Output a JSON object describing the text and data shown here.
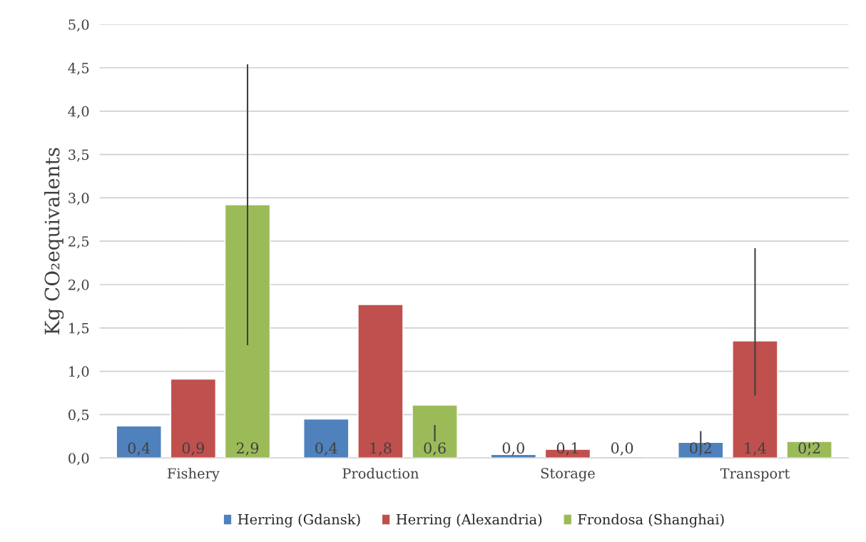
{
  "chart_data": {
    "type": "bar",
    "ylabel": "Kg CO₂equivalents",
    "categories": [
      "Fishery",
      "Production",
      "Storage",
      "Transport"
    ],
    "series": [
      {
        "name": "Herring (Gdansk)",
        "color": "#4f81bd",
        "values": [
          0.37,
          0.45,
          0.04,
          0.18
        ],
        "value_labels": [
          "0,4",
          "0,4",
          "0,0",
          "0,2"
        ],
        "errors": [
          null,
          null,
          null,
          [
            0.07,
            0.31
          ]
        ]
      },
      {
        "name": "Herring (Alexandria)",
        "color": "#c0504d",
        "values": [
          0.91,
          1.77,
          0.1,
          1.35
        ],
        "value_labels": [
          "0,9",
          "1,8",
          "0,1",
          "1,4"
        ],
        "errors": [
          null,
          null,
          null,
          [
            0.72,
            2.42
          ]
        ]
      },
      {
        "name": "Frondosa (Shanghai)",
        "color": "#9bbb59",
        "values": [
          2.92,
          0.61,
          0.015,
          0.19
        ],
        "value_labels": [
          "2,9",
          "0,6",
          "0,0",
          "0,2"
        ],
        "errors": [
          [
            1.3,
            4.54
          ],
          [
            0.19,
            0.38
          ],
          null,
          [
            0.11,
            0.17
          ]
        ]
      }
    ],
    "ylim": [
      0,
      5
    ],
    "yticks": [
      {
        "value": 0,
        "label": "0,0"
      },
      {
        "value": 0.5,
        "label": "0,5"
      },
      {
        "value": 1,
        "label": "1,0"
      },
      {
        "value": 1.5,
        "label": "1,5"
      },
      {
        "value": 2,
        "label": "2,0"
      },
      {
        "value": 2.5,
        "label": "2,5"
      },
      {
        "value": 3,
        "label": "3,0"
      },
      {
        "value": 3.5,
        "label": "3,5"
      },
      {
        "value": 4,
        "label": "4,0"
      },
      {
        "value": 4.5,
        "label": "4,5"
      },
      {
        "value": 5,
        "label": "5,0"
      }
    ],
    "grid": "y",
    "legend": "bottom"
  }
}
